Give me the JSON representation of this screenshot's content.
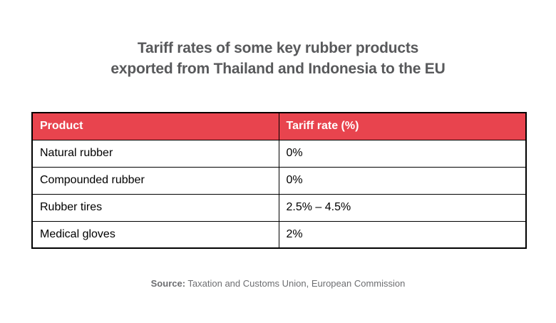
{
  "title": {
    "line1": "Tariff rates of some key rubber products",
    "line2": "exported from Thailand and Indonesia to the EU"
  },
  "table": {
    "columns": [
      "Product",
      "Tariff rate (%)"
    ],
    "rows": [
      {
        "product": "Natural rubber",
        "rate": "0%"
      },
      {
        "product": "Compounded rubber",
        "rate": "0%"
      },
      {
        "product": "Rubber tires",
        "rate": "2.5% – 4.5%"
      },
      {
        "product": "Medical gloves",
        "rate": "2%"
      }
    ]
  },
  "source": {
    "label": "Source:",
    "text": " Taxation and Customs Union, European Commission"
  },
  "colors": {
    "header_bg": "#E8444E",
    "header_text": "#FFFFFF",
    "border": "#000000",
    "title_text": "#58595B",
    "cell_text": "#000000",
    "source_text": "#6D6E71",
    "background": "#FFFFFF"
  },
  "chart_data": {
    "type": "table",
    "title": "Tariff rates of some key rubber products exported from Thailand and Indonesia to the EU",
    "columns": [
      "Product",
      "Tariff rate (%)"
    ],
    "rows": [
      [
        "Natural rubber",
        "0%"
      ],
      [
        "Compounded rubber",
        "0%"
      ],
      [
        "Rubber tires",
        "2.5% – 4.5%"
      ],
      [
        "Medical gloves",
        "2%"
      ]
    ],
    "source": "Source: Taxation and Customs Union, European Commission",
    "layout_hints": {
      "header_style": "red background, white bold text",
      "grid": "black 1px cell borders, 2px outer border",
      "title_position": "top center, two lines",
      "source_position": "bottom center"
    }
  }
}
